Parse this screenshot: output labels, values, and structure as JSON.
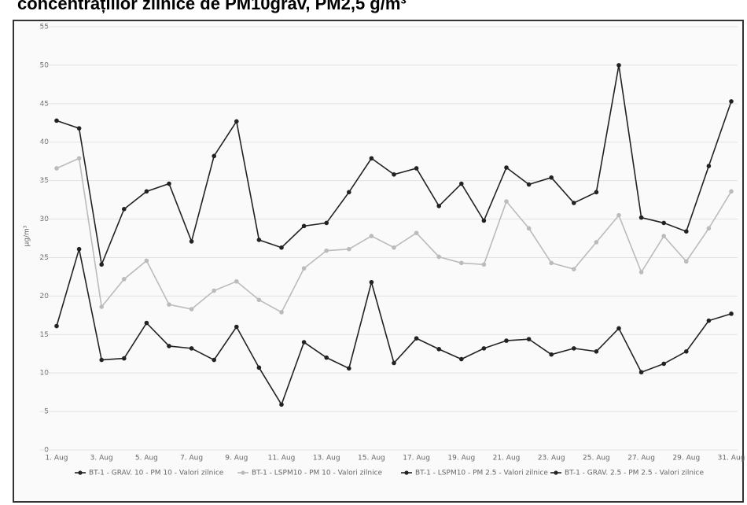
{
  "chart_data": {
    "type": "line",
    "title": "concentrațiilor zilnice de PM10grav, PM2,5 g/m³",
    "y_label": "µg/m³",
    "categories": [
      "1. Aug",
      null,
      "3. Aug",
      null,
      "5. Aug",
      null,
      "7. Aug",
      null,
      "9. Aug",
      null,
      "11. Aug",
      null,
      "13. Aug",
      null,
      "15. Aug",
      null,
      "17. Aug",
      null,
      "19. Aug",
      null,
      "21. Aug",
      null,
      "23. Aug",
      null,
      "25. Aug",
      null,
      "27. Aug",
      null,
      "29. Aug",
      null,
      "31. Aug"
    ],
    "series": [
      {
        "name": "BT-1 - GRAV. 10 - PM 10 - Valori zilnice",
        "color": "#222222",
        "values": [
          42.8,
          41.8,
          24.1,
          31.3,
          33.6,
          34.6,
          27.1,
          38.2,
          42.7,
          27.3,
          26.3,
          29.1,
          29.5,
          33.5,
          37.9,
          35.8,
          36.6,
          31.7,
          34.6,
          29.8,
          36.7,
          34.5,
          35.4,
          32.1,
          33.5,
          50.0,
          30.2,
          29.5,
          28.4,
          36.9,
          45.3
        ]
      },
      {
        "name": "BT-1 - LSPM10 - PM 10 - Valori zilnice",
        "color": "#bbbbbb",
        "values": [
          36.6,
          37.9,
          18.6,
          22.2,
          24.6,
          18.9,
          18.3,
          20.7,
          21.9,
          19.5,
          17.9,
          23.6,
          25.9,
          26.1,
          27.8,
          26.3,
          28.2,
          25.1,
          24.3,
          24.1,
          32.3,
          28.8,
          24.3,
          23.5,
          27.0,
          30.5,
          23.1,
          27.8,
          24.5,
          28.8,
          33.6
        ]
      },
      {
        "name": "BT-1 - LSPM10 - PM 2.5 - Valori zilnice",
        "color": "#222222",
        "values": [
          16.1,
          26.1,
          11.7,
          11.9,
          16.5,
          13.5,
          13.2,
          11.7,
          16.0,
          10.7,
          5.9,
          14.0,
          12.0,
          10.6,
          21.8,
          11.3,
          14.5,
          13.1,
          11.8,
          13.2,
          14.2,
          14.4,
          12.4,
          13.2,
          12.8,
          15.8,
          10.1,
          11.2,
          12.8,
          16.8,
          17.7
        ]
      },
      {
        "name": "BT-1 - GRAV. 2.5 - PM 2.5 - Valori zilnice",
        "color": "#222222",
        "values": [
          null,
          null,
          null,
          null,
          null,
          null,
          null,
          null,
          null,
          null,
          null,
          null,
          null,
          null,
          null,
          null,
          null,
          null,
          null,
          null,
          null,
          null,
          null,
          null,
          null,
          null,
          null,
          null,
          null,
          null,
          null
        ]
      }
    ],
    "ylim": [
      0,
      55
    ],
    "yticks": [
      0,
      5,
      10,
      15,
      20,
      25,
      30,
      35,
      40,
      45,
      50,
      55
    ],
    "grid": true
  }
}
